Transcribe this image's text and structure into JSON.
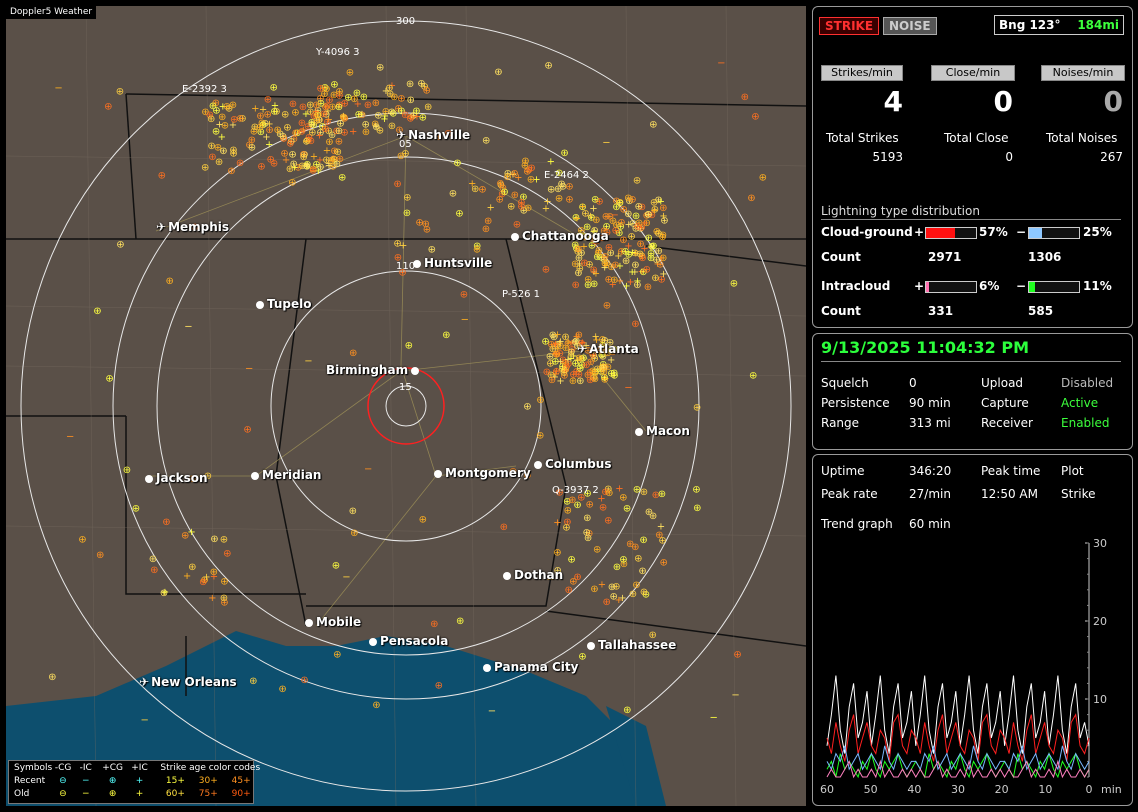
{
  "app": {
    "title": "Doppler5 Weather"
  },
  "map": {
    "range_rings": {
      "outer": "300",
      "mid": "110",
      "inner": "15"
    },
    "cities": [
      {
        "name": "Nashville",
        "type": "airport"
      },
      {
        "name": "Memphis",
        "type": "airport"
      },
      {
        "name": "Chattanooga",
        "type": "city"
      },
      {
        "name": "Huntsville",
        "type": "city"
      },
      {
        "name": "Tupelo",
        "type": "city"
      },
      {
        "name": "Atlanta",
        "type": "airport"
      },
      {
        "name": "Birmingham",
        "type": "city"
      },
      {
        "name": "Macon",
        "type": "city"
      },
      {
        "name": "Jackson",
        "type": "city"
      },
      {
        "name": "Meridian",
        "type": "city"
      },
      {
        "name": "Montgomery",
        "type": "city"
      },
      {
        "name": "Columbus",
        "type": "city"
      },
      {
        "name": "Dothan",
        "type": "city"
      },
      {
        "name": "Mobile",
        "type": "city"
      },
      {
        "name": "Pensacola",
        "type": "city"
      },
      {
        "name": "Tallahassee",
        "type": "city"
      },
      {
        "name": "Panama City",
        "type": "city"
      },
      {
        "name": "New Orleans",
        "type": "airport"
      }
    ],
    "sensors": [
      "Y-4096 3",
      "E-2392 3",
      "E-2464 2",
      "P-526 1",
      "Q-3937 2",
      "05"
    ],
    "legend": {
      "symbols_label": "Symbols",
      "headers": [
        "-CG",
        "-IC",
        "+CG",
        "+IC"
      ],
      "age_title": "Strike age color codes",
      "recent_label": "Recent",
      "old_label": "Old",
      "recent_ages": [
        "15+",
        "30+",
        "45+"
      ],
      "old_ages": [
        "60+",
        "75+",
        "90+"
      ],
      "colors": {
        "15+": "#ffff40",
        "30+": "#ffb020",
        "45+": "#ff9020",
        "60+": "#ffe040",
        "75+": "#ff7a20",
        "90+": "#ff5a10"
      }
    }
  },
  "stats": {
    "strike_btn": "STRIKE",
    "noise_btn": "NOISE",
    "bearing": "Bng 123°",
    "distance": "184mi",
    "strikes_min_label": "Strikes/min",
    "close_min_label": "Close/min",
    "noises_min_label": "Noises/min",
    "strikes_min": "4",
    "close_min": "0",
    "noises_min": "0",
    "total_strikes_label": "Total Strikes",
    "total_close_label": "Total Close",
    "total_noises_label": "Total Noises",
    "total_strikes": "5193",
    "total_close": "0",
    "total_noises": "267",
    "dist_title": "Lightning type distribution",
    "cg_label": "Cloud-ground",
    "ic_label": "Intracloud",
    "count_label": "Count",
    "plus": "+",
    "minus": "−",
    "cg_pos_pct": "57%",
    "cg_neg_pct": "25%",
    "ic_pos_pct": "6%",
    "ic_neg_pct": "11%",
    "cg_pos_frac": 0.57,
    "cg_neg_frac": 0.25,
    "ic_pos_frac": 0.06,
    "ic_neg_frac": 0.11,
    "cg_pos_count": "2971",
    "cg_neg_count": "1306",
    "ic_pos_count": "331",
    "ic_neg_count": "585",
    "colors": {
      "cg_pos": "#ff1010",
      "cg_neg": "#8ec8ff",
      "ic_pos": "#ff70b0",
      "ic_neg": "#20ff20"
    }
  },
  "status": {
    "datetime": "9/13/2025 11:04:32 PM",
    "squelch_label": "Squelch",
    "squelch": "0",
    "persistence_label": "Persistence",
    "persistence": "90 min",
    "range_label": "Range",
    "range": "313 mi",
    "upload_label": "Upload",
    "upload": "Disabled",
    "capture_label": "Capture",
    "capture": "Active",
    "receiver_label": "Receiver",
    "receiver": "Enabled"
  },
  "trend": {
    "uptime_label": "Uptime",
    "uptime": "346:20",
    "peak_time_label": "Peak time",
    "peak_time": "12:50 AM",
    "plot_label": "Plot",
    "plot": "Strike",
    "peak_rate_label": "Peak rate",
    "peak_rate": "27/min",
    "trend_graph_label": "Trend graph",
    "trend_graph": "60 min",
    "x_unit": "min"
  },
  "chart_data": {
    "type": "line",
    "x_ticks": [
      "60",
      "50",
      "40",
      "30",
      "20",
      "10",
      "0"
    ],
    "y_ticks": [
      "30",
      "20",
      "10"
    ],
    "xlim": [
      60,
      0
    ],
    "ylim": [
      0,
      30
    ],
    "series": [
      {
        "color": "#ffffff",
        "values": [
          4,
          8,
          13,
          6,
          3,
          9,
          12,
          5,
          7,
          11,
          4,
          8,
          13,
          6,
          3,
          9,
          12,
          5,
          7,
          11,
          4,
          8,
          13,
          6,
          3,
          9,
          12,
          5,
          7,
          11,
          4,
          8,
          13,
          6,
          3,
          9,
          12,
          5,
          7,
          11,
          4,
          8,
          13,
          6,
          3,
          9,
          12,
          5,
          7,
          11,
          4,
          8,
          13,
          6,
          3,
          9,
          12,
          5,
          7,
          4
        ]
      },
      {
        "color": "#ff2020",
        "values": [
          5,
          3,
          7,
          4,
          2,
          6,
          8,
          3,
          5,
          7,
          4,
          3,
          6,
          5,
          2,
          7,
          8,
          4,
          3,
          6,
          5,
          3,
          7,
          4,
          2,
          6,
          8,
          3,
          5,
          7,
          4,
          3,
          6,
          5,
          2,
          7,
          8,
          4,
          3,
          6,
          5,
          3,
          7,
          4,
          2,
          6,
          8,
          3,
          5,
          7,
          4,
          3,
          6,
          5,
          2,
          7,
          8,
          4,
          3,
          5
        ]
      },
      {
        "color": "#20ff20",
        "values": [
          1,
          2,
          0,
          3,
          1,
          2,
          1,
          0,
          2,
          1,
          3,
          1,
          0,
          2,
          1,
          2,
          3,
          1,
          0,
          1,
          2,
          1,
          0,
          3,
          1,
          2,
          1,
          0,
          2,
          1,
          3,
          1,
          0,
          2,
          1,
          2,
          3,
          1,
          0,
          1,
          2,
          1,
          0,
          3,
          1,
          2,
          1,
          0,
          2,
          1,
          3,
          1,
          0,
          2,
          1,
          2,
          3,
          1,
          0,
          1
        ]
      },
      {
        "color": "#7ab8ff",
        "values": [
          2,
          1,
          3,
          2,
          4,
          1,
          2,
          3,
          1,
          2,
          3,
          2,
          1,
          4,
          2,
          1,
          3,
          2,
          1,
          2,
          2,
          1,
          3,
          2,
          4,
          1,
          2,
          3,
          1,
          2,
          3,
          2,
          1,
          4,
          2,
          1,
          3,
          2,
          1,
          2,
          2,
          1,
          3,
          2,
          4,
          1,
          2,
          3,
          1,
          2,
          3,
          2,
          1,
          4,
          2,
          1,
          3,
          2,
          1,
          2
        ]
      },
      {
        "color": "#ff80c0",
        "values": [
          0,
          1,
          0,
          0,
          1,
          2,
          0,
          1,
          0,
          0,
          1,
          0,
          2,
          0,
          1,
          0,
          0,
          1,
          0,
          1,
          0,
          1,
          0,
          0,
          1,
          2,
          0,
          1,
          0,
          0,
          1,
          0,
          2,
          0,
          1,
          0,
          0,
          1,
          0,
          1,
          0,
          1,
          0,
          0,
          1,
          2,
          0,
          1,
          0,
          0,
          1,
          0,
          2,
          0,
          1,
          0,
          0,
          1,
          0,
          1
        ]
      }
    ]
  }
}
